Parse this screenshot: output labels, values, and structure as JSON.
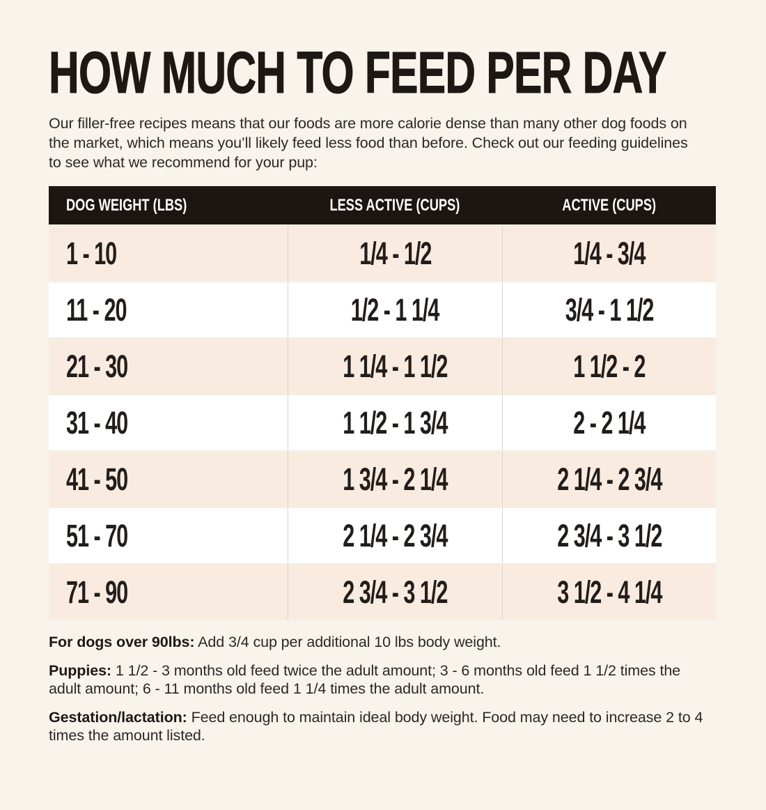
{
  "page": {
    "title": "HOW MUCH TO FEED PER DAY",
    "intro": "Our filler-free recipes means that our foods are more calorie dense than many other dog foods on the market, which means you’ll likely feed less food than before. Check out our feeding guidelines to see what we recommend for your pup:"
  },
  "table": {
    "columns": [
      "DOG WEIGHT (LBS)",
      "LESS ACTIVE (CUPS)",
      "ACTIVE (CUPS)"
    ],
    "rows": [
      {
        "weight": "1 - 10",
        "less_active": "1/4 - 1/2",
        "active": "1/4 - 3/4"
      },
      {
        "weight": "11 - 20",
        "less_active": "1/2 - 1 1/4",
        "active": "3/4 - 1 1/2"
      },
      {
        "weight": "21 - 30",
        "less_active": "1 1/4 - 1 1/2",
        "active": "1 1/2 - 2"
      },
      {
        "weight": "31 - 40",
        "less_active": "1 1/2 - 1 3/4",
        "active": "2 - 2 1/4"
      },
      {
        "weight": "41 - 50",
        "less_active": "1 3/4 - 2 1/4",
        "active": "2 1/4 - 2 3/4"
      },
      {
        "weight": "51 - 70",
        "less_active": "2 1/4 - 2 3/4",
        "active": "2 3/4 - 3 1/2"
      },
      {
        "weight": "71 - 90",
        "less_active": "2 3/4 - 3 1/2",
        "active": "3 1/2 - 4 1/4"
      }
    ]
  },
  "notes": [
    {
      "label": "For dogs over 90lbs:",
      "text": "Add 3/4 cup per additional 10 lbs body weight."
    },
    {
      "label": "Puppies:",
      "text": "1 1/2 - 3 months old feed twice the adult amount; 3 - 6 months old feed 1 1/2 times the adult amount; 6 - 11 months old feed 1 1/4 times the adult amount."
    },
    {
      "label": "Gestation/lactation:",
      "text": "Feed enough to maintain ideal body weight. Food may need to increase 2 to 4 times the amount listed."
    }
  ],
  "colors": {
    "background": "#f8f4ec",
    "title": "#1d1814",
    "text": "#2b2824",
    "header_bg": "#1c1511",
    "header_text": "#ffffff",
    "row_bg": "#ffffff",
    "row_alt_bg": "#f9ebe0",
    "row_divider": "#f3ede3",
    "divider": "#d8d3ca",
    "table_text": "#221d1a"
  }
}
